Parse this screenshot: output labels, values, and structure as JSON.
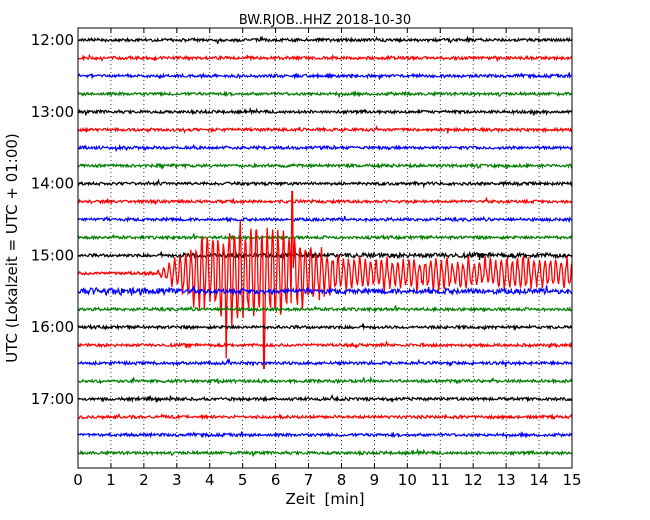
{
  "chart_data": {
    "type": "line",
    "title": "BW.RJOB..HHZ 2018-10-30",
    "xlabel": "Zeit  [min]",
    "ylabel": "UTC (Lokalzeit = UTC + 01:00)",
    "xlim": [
      0,
      15
    ],
    "x_ticks": [
      "0",
      "1",
      "2",
      "3",
      "4",
      "5",
      "6",
      "7",
      "8",
      "9",
      "10",
      "11",
      "12",
      "13",
      "14",
      "15"
    ],
    "y_ticks": [
      "12:00",
      "13:00",
      "14:00",
      "15:00",
      "16:00",
      "17:00"
    ],
    "grid": "vertical dotted",
    "trace_colors": [
      "#000000",
      "#ff0000",
      "#0000ff",
      "#007f00"
    ],
    "trace_start_times": [
      "12:00",
      "12:15",
      "12:30",
      "12:45",
      "13:00",
      "13:15",
      "13:30",
      "13:45",
      "14:00",
      "14:15",
      "14:30",
      "14:45",
      "15:00",
      "15:15",
      "15:30",
      "15:45",
      "16:00",
      "16:15",
      "16:30",
      "16:45",
      "17:00",
      "17:15",
      "17:30",
      "17:45"
    ],
    "event": {
      "trace_index": 13,
      "start_min": 2.2,
      "peak_min": 6.5,
      "end_min": 15
    }
  }
}
